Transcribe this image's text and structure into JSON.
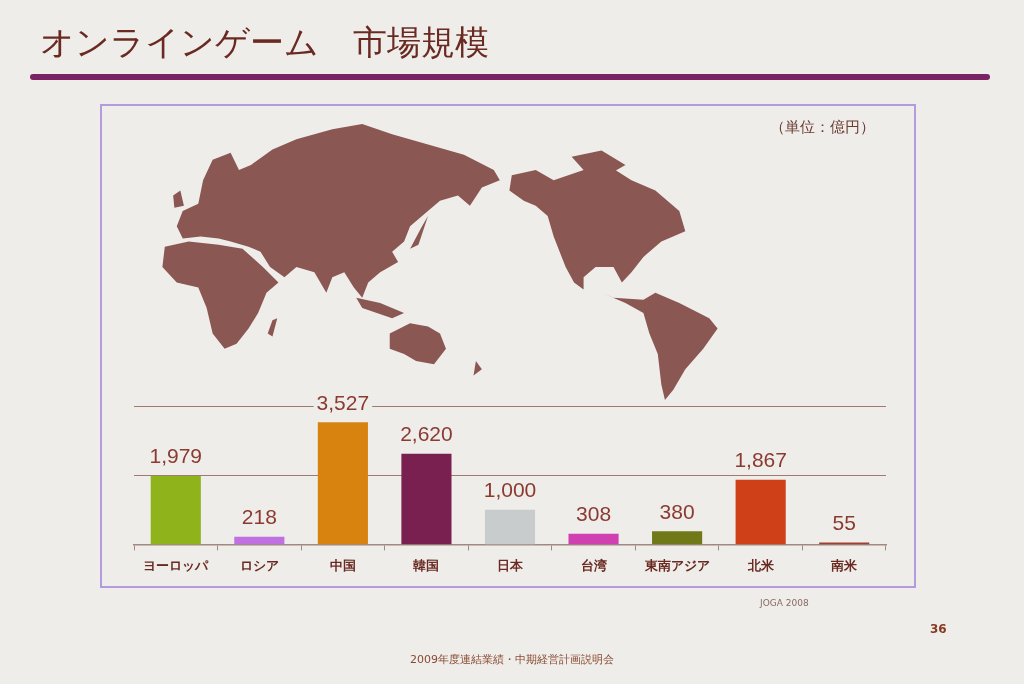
{
  "chart_data": {
    "type": "bar",
    "title": "オンラインゲーム　市場規模",
    "categories": [
      "ヨーロッパ",
      "ロシア",
      "中国",
      "韓国",
      "日本",
      "台湾",
      "東南アジア",
      "北米",
      "南米"
    ],
    "values": [
      1979,
      218,
      3527,
      2620,
      1000,
      308,
      380,
      1867,
      55
    ],
    "colors": [
      "#8fb31a",
      "#c070e0",
      "#d88210",
      "#7a2050",
      "#c8cccc",
      "#d040b0",
      "#707818",
      "#d04018",
      "#a04030"
    ],
    "value_labels": [
      "1,979",
      "218",
      "3,527",
      "2,620",
      "1,000",
      "308",
      "380",
      "1,867",
      "55"
    ],
    "ylim": [
      0,
      4000
    ],
    "tick_labels": "x",
    "ref_lines": [
      {
        "axis": "y",
        "value": 2000,
        "color": "#a07a70"
      },
      {
        "axis": "y",
        "value": 4000,
        "color": "#a07a70"
      }
    ],
    "annotations": [
      "（単位：億円）",
      "JOGA 2008",
      "2009年度連結業績・中期経営計画説明会",
      "36"
    ]
  }
}
